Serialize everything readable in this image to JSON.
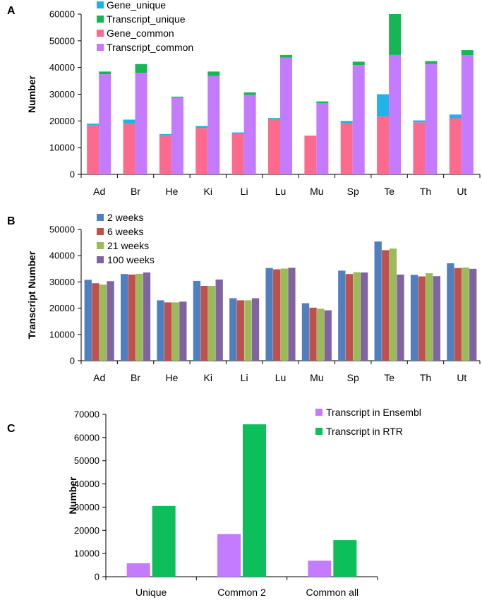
{
  "panels": [
    {
      "label": "A",
      "chart_data": {
        "type": "bar",
        "stacked": true,
        "ylabel": "Number",
        "xlabel": "",
        "ylim": [
          0,
          60000
        ],
        "yticks": [
          0,
          10000,
          20000,
          30000,
          40000,
          50000,
          60000
        ],
        "categories": [
          "Ad",
          "Br",
          "He",
          "Ki",
          "Li",
          "Lu",
          "Mu",
          "Sp",
          "Te",
          "Th",
          "Ut"
        ],
        "legend_position": "top-left",
        "colors": {
          "Gene_unique": "#1fb4e8",
          "Transcript_unique": "#16b655",
          "Gene_common": "#fc6b8d",
          "Transcript_common": "#c47bff"
        },
        "series": [
          {
            "name": "Gene_common",
            "group": "gene",
            "values": [
              18300,
              19000,
              14800,
              17400,
              15100,
              20500,
              14500,
              19300,
              21700,
              19500,
              21000
            ]
          },
          {
            "name": "Gene_unique",
            "group": "gene",
            "values": [
              700,
              1500,
              300,
              700,
              600,
              600,
              0,
              700,
              8300,
              700,
              1400
            ]
          },
          {
            "name": "Transcript_common",
            "group": "transcript",
            "values": [
              37500,
              38000,
              28800,
              36900,
              29700,
              43700,
              26700,
              40900,
              44700,
              41300,
              44600
            ]
          },
          {
            "name": "Transcript_unique",
            "group": "transcript",
            "values": [
              1000,
              3300,
              300,
              1600,
              1000,
              1000,
              600,
              1300,
              15300,
              1100,
              1900
            ]
          }
        ],
        "legend_order": [
          "Gene_unique",
          "Transcript_unique",
          "Gene_common",
          "Transcript_common"
        ]
      }
    },
    {
      "label": "B",
      "chart_data": {
        "type": "bar",
        "ylabel": "Transcript Number",
        "xlabel": "",
        "ylim": [
          0,
          50000
        ],
        "yticks": [
          0,
          10000,
          20000,
          30000,
          40000,
          50000
        ],
        "categories": [
          "Ad",
          "Br",
          "He",
          "Ki",
          "Li",
          "Lu",
          "Mu",
          "Sp",
          "Te",
          "Th",
          "Ut"
        ],
        "legend_position": "top-left",
        "series": [
          {
            "name": "2 weeks",
            "color": "#4f7fbf",
            "values": [
              30800,
              33000,
              23000,
              30400,
              23800,
              35300,
              21900,
              34300,
              45400,
              32700,
              37100
            ]
          },
          {
            "name": "6 weeks",
            "color": "#c0504d",
            "values": [
              29500,
              32800,
              22200,
              28500,
              23000,
              34800,
              20200,
              33000,
              42100,
              32100,
              35300
            ]
          },
          {
            "name": "21 weeks",
            "color": "#9bbb59",
            "values": [
              29000,
              33100,
              22200,
              28500,
              23000,
              35100,
              19800,
              33700,
              42700,
              33300,
              35500
            ]
          },
          {
            "name": "100 weeks",
            "color": "#8064a2",
            "values": [
              30300,
              33600,
              22500,
              30900,
              23800,
              35400,
              19200,
              33600,
              32800,
              32200,
              35000
            ]
          }
        ]
      }
    },
    {
      "label": "C",
      "chart_data": {
        "type": "bar",
        "ylabel": "Number",
        "xlabel": "",
        "ylim": [
          0,
          70000
        ],
        "yticks": [
          0,
          10000,
          20000,
          30000,
          40000,
          50000,
          60000,
          70000
        ],
        "categories": [
          "Unique",
          "Common 2",
          "Common all"
        ],
        "legend_position": "top-right",
        "series": [
          {
            "name": "Transcript in Ensembl",
            "color": "#c47bff",
            "values": [
              5800,
              18400,
              6900
            ]
          },
          {
            "name": "Transcript in RTR",
            "color": "#0cbf5a",
            "values": [
              30500,
              65700,
              15800
            ]
          }
        ]
      }
    }
  ]
}
